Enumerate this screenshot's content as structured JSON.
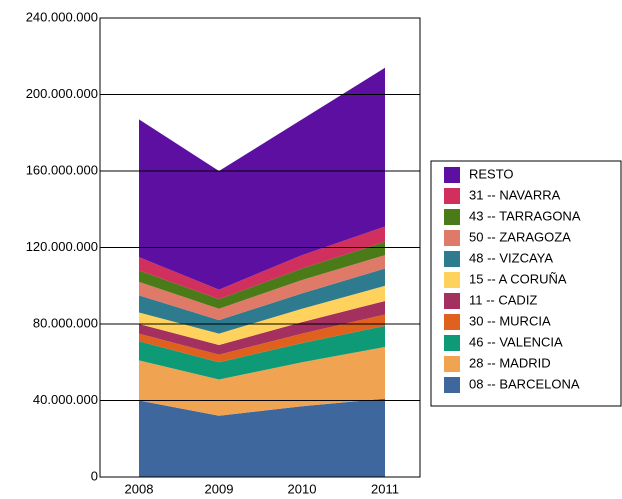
{
  "chart_data": {
    "type": "area",
    "stacked": true,
    "categories": [
      "2008",
      "2009",
      "2010",
      "2011"
    ],
    "series": [
      {
        "name": "08 -- BARCELONA",
        "color": "#3d679d",
        "values": [
          40000000,
          32000000,
          37000000,
          41000000
        ]
      },
      {
        "name": "28 -- MADRID",
        "color": "#f0a452",
        "values": [
          21000000,
          19000000,
          23000000,
          27000000
        ]
      },
      {
        "name": "46 -- VALENCIA",
        "color": "#0e9a76",
        "values": [
          10000000,
          9000000,
          10000000,
          11000000
        ]
      },
      {
        "name": "30 -- MURCIA",
        "color": "#e0601e",
        "values": [
          4000000,
          4000000,
          5000000,
          6000000
        ]
      },
      {
        "name": "11 -- CADIZ",
        "color": "#a3305e",
        "values": [
          5000000,
          5000000,
          6000000,
          7000000
        ]
      },
      {
        "name": "15 -- A CORUÑA",
        "color": "#ffd25e",
        "values": [
          6000000,
          6000000,
          7000000,
          8000000
        ]
      },
      {
        "name": "48 -- VIZCAYA",
        "color": "#2e7a8e",
        "values": [
          9000000,
          7000000,
          8000000,
          9000000
        ]
      },
      {
        "name": "50 -- ZARAGOZA",
        "color": "#e07a68",
        "values": [
          7000000,
          6000000,
          7000000,
          7000000
        ]
      },
      {
        "name": "43 -- TARRAGONA",
        "color": "#4b7a18",
        "values": [
          6000000,
          5000000,
          6000000,
          7000000
        ]
      },
      {
        "name": "31 -- NAVARRA",
        "color": "#d1305e",
        "values": [
          7000000,
          5000000,
          7000000,
          8000000
        ]
      },
      {
        "name": "RESTO",
        "color": "#5c0fa0",
        "values": [
          72000000,
          62000000,
          71000000,
          83000000
        ]
      }
    ],
    "ylim": [
      0,
      240000000
    ],
    "yticks": [
      0,
      {
        "value": 40000000,
        "label": "40.000.000"
      },
      {
        "value": 80000000,
        "label": "80.000.000"
      },
      {
        "value": 120000000,
        "label": "120.000.000"
      },
      {
        "value": 160000000,
        "label": "160.000.000"
      },
      {
        "value": 200000000,
        "label": "200.000.000"
      },
      {
        "value": 240000000,
        "label": "240.000.000"
      }
    ],
    "grid": true,
    "legend": "right"
  }
}
